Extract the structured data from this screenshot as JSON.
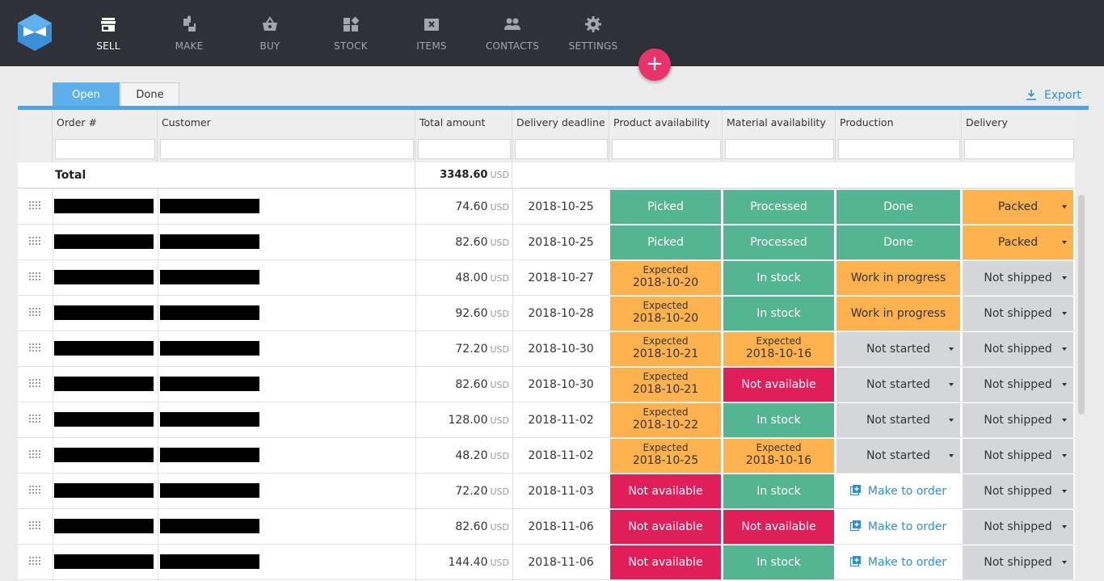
{
  "nav": {
    "items": [
      {
        "label": "SELL",
        "icon": "store-icon",
        "active": true
      },
      {
        "label": "MAKE",
        "icon": "puzzle-icon",
        "active": false
      },
      {
        "label": "BUY",
        "icon": "basket-icon",
        "active": false
      },
      {
        "label": "STOCK",
        "icon": "boxes-icon",
        "active": false
      },
      {
        "label": "ITEMS",
        "icon": "item-icon",
        "active": false
      },
      {
        "label": "CONTACTS",
        "icon": "people-icon",
        "active": false
      },
      {
        "label": "SETTINGS",
        "icon": "gear-icon",
        "active": false
      }
    ],
    "fab_label": "+"
  },
  "tabs": {
    "open": "Open",
    "done": "Done"
  },
  "export_label": "Export",
  "columns": {
    "order": "Order #",
    "customer": "Customer",
    "total_amount": "Total amount",
    "delivery_deadline": "Delivery deadline",
    "product_availability": "Product availability",
    "material_availability": "Material availability",
    "production": "Production",
    "delivery": "Delivery"
  },
  "total": {
    "label": "Total",
    "amount": "3348.60",
    "currency": "USD"
  },
  "currency": "USD",
  "colors": {
    "green": "#54b592",
    "orange": "#fdb24e",
    "red": "#e01e5a",
    "grey": "#d4d6d8",
    "accent": "#4fa3e3",
    "fab": "#e8336d"
  },
  "rows": [
    {
      "amount": "74.60",
      "deadline": "2018-10-25",
      "product": {
        "state": "green",
        "text": "Picked"
      },
      "material": {
        "state": "green",
        "text": "Processed"
      },
      "production": {
        "state": "green",
        "text": "Done"
      },
      "delivery": {
        "state": "orange",
        "text": "Packed"
      }
    },
    {
      "amount": "82.60",
      "deadline": "2018-10-25",
      "product": {
        "state": "green",
        "text": "Picked"
      },
      "material": {
        "state": "green",
        "text": "Processed"
      },
      "production": {
        "state": "green",
        "text": "Done"
      },
      "delivery": {
        "state": "orange",
        "text": "Packed"
      }
    },
    {
      "amount": "48.00",
      "deadline": "2018-10-27",
      "product": {
        "state": "orange",
        "small": "Expected",
        "text": "2018-10-20"
      },
      "material": {
        "state": "green",
        "text": "In stock"
      },
      "production": {
        "state": "orange",
        "text": "Work in progress"
      },
      "delivery": {
        "state": "grey",
        "text": "Not shipped"
      }
    },
    {
      "amount": "92.60",
      "deadline": "2018-10-28",
      "product": {
        "state": "orange",
        "small": "Expected",
        "text": "2018-10-20"
      },
      "material": {
        "state": "green",
        "text": "In stock"
      },
      "production": {
        "state": "orange",
        "text": "Work in progress"
      },
      "delivery": {
        "state": "grey",
        "text": "Not shipped"
      }
    },
    {
      "amount": "72.20",
      "deadline": "2018-10-30",
      "product": {
        "state": "orange",
        "small": "Expected",
        "text": "2018-10-21"
      },
      "material": {
        "state": "orange",
        "small": "Expected",
        "text": "2018-10-16"
      },
      "production": {
        "state": "grey",
        "text": "Not started"
      },
      "delivery": {
        "state": "grey",
        "text": "Not shipped"
      }
    },
    {
      "amount": "82.60",
      "deadline": "2018-10-30",
      "product": {
        "state": "orange",
        "small": "Expected",
        "text": "2018-10-21"
      },
      "material": {
        "state": "red",
        "text": "Not available"
      },
      "production": {
        "state": "grey",
        "text": "Not started"
      },
      "delivery": {
        "state": "grey",
        "text": "Not shipped"
      }
    },
    {
      "amount": "128.00",
      "deadline": "2018-11-02",
      "product": {
        "state": "orange",
        "small": "Expected",
        "text": "2018-10-22"
      },
      "material": {
        "state": "green",
        "text": "In stock"
      },
      "production": {
        "state": "grey",
        "text": "Not started"
      },
      "delivery": {
        "state": "grey",
        "text": "Not shipped"
      }
    },
    {
      "amount": "48.20",
      "deadline": "2018-11-02",
      "product": {
        "state": "orange",
        "small": "Expected",
        "text": "2018-10-25"
      },
      "material": {
        "state": "orange",
        "small": "Expected",
        "text": "2018-10-16"
      },
      "production": {
        "state": "grey",
        "text": "Not started"
      },
      "delivery": {
        "state": "grey",
        "text": "Not shipped"
      }
    },
    {
      "amount": "72.20",
      "deadline": "2018-11-03",
      "product": {
        "state": "red",
        "text": "Not available"
      },
      "material": {
        "state": "green",
        "text": "In stock"
      },
      "production": {
        "state": "white",
        "text": "Make to order"
      },
      "delivery": {
        "state": "grey",
        "text": "Not shipped"
      }
    },
    {
      "amount": "82.60",
      "deadline": "2018-11-06",
      "product": {
        "state": "red",
        "text": "Not available"
      },
      "material": {
        "state": "red",
        "text": "Not available"
      },
      "production": {
        "state": "white",
        "text": "Make to order"
      },
      "delivery": {
        "state": "grey",
        "text": "Not shipped"
      }
    },
    {
      "amount": "144.40",
      "deadline": "2018-11-06",
      "product": {
        "state": "red",
        "text": "Not available"
      },
      "material": {
        "state": "green",
        "text": "In stock"
      },
      "production": {
        "state": "white",
        "text": "Make to order"
      },
      "delivery": {
        "state": "grey",
        "text": "Not shipped"
      }
    }
  ]
}
